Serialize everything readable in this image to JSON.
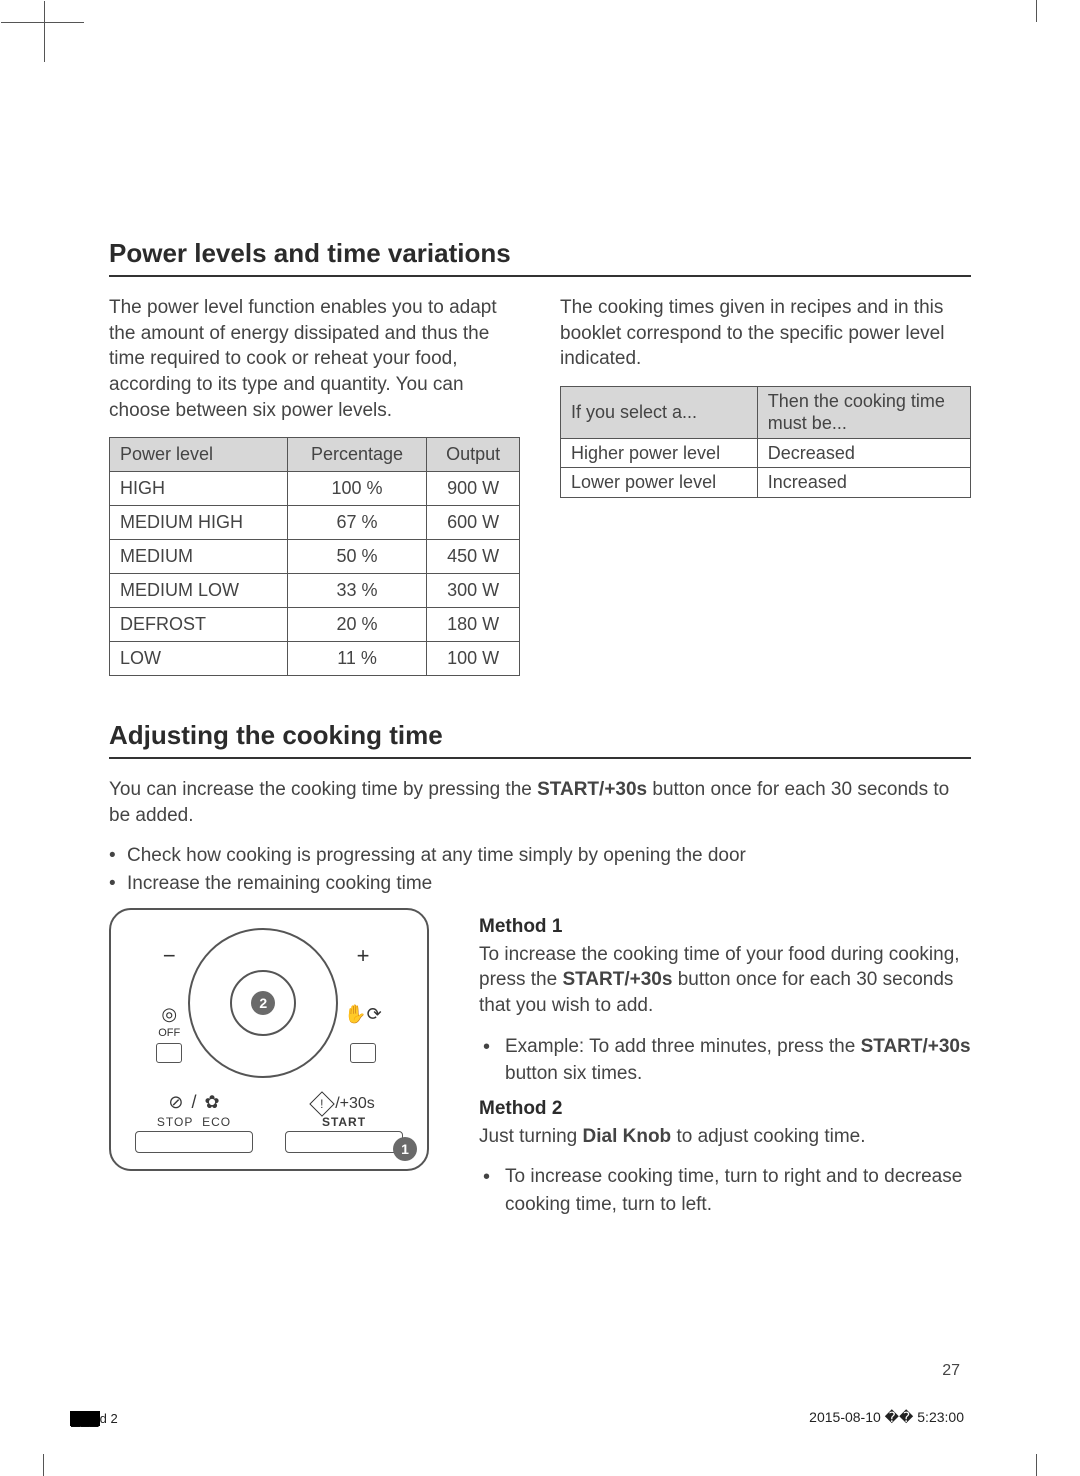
{
  "section1": {
    "title": "Power levels and time variations",
    "intro": "The power level function enables you to adapt the amount of energy dissipated and thus the time required to cook or reheat your food, according to its type and quantity. You can choose between six power levels.",
    "right_intro": "The cooking times given in recipes and in this booklet correspond to the specific power level indicated.",
    "power_table": {
      "columns": [
        "Power level",
        "Percentage",
        "Output"
      ],
      "rows": [
        [
          "HIGH",
          "100 %",
          "900 W"
        ],
        [
          "MEDIUM HIGH",
          "67 %",
          "600 W"
        ],
        [
          "MEDIUM",
          "50 %",
          "450 W"
        ],
        [
          "MEDIUM LOW",
          "33 %",
          "300 W"
        ],
        [
          "DEFROST",
          "20 %",
          "180 W"
        ],
        [
          "LOW",
          "11 %",
          "100 W"
        ]
      ]
    },
    "select_table": {
      "columns": [
        "If you select a...",
        "Then the cooking time must be..."
      ],
      "rows": [
        [
          "Higher power level",
          "Decreased"
        ],
        [
          "Lower power level",
          "Increased"
        ]
      ]
    }
  },
  "section2": {
    "title": "Adjusting the cooking time",
    "intro_pre": "You can increase the cooking time by pressing the ",
    "intro_bold": "START/+30s",
    "intro_post": " button once for each 30 seconds to be added.",
    "bullets": [
      "Check how cooking is progressing at any time simply by opening the door",
      "Increase the remaining cooking time"
    ],
    "panel": {
      "minus": "−",
      "plus": "+",
      "badge_dial": "2",
      "badge_start": "1",
      "off_label": "OFF",
      "stop_label": "STOP",
      "eco_label": "ECO",
      "start_label": "START",
      "plus30": "/+30s"
    },
    "method1": {
      "title": "Method 1",
      "p_pre": "To increase the cooking time of your food during cooking, press the ",
      "p_bold": "START/+30s",
      "p_post": " button once for each 30 seconds that you wish to add.",
      "ex_pre": "Example: To add three minutes, press the ",
      "ex_bold": "START/+30s",
      "ex_post": " button six times."
    },
    "method2": {
      "title": "Method 2",
      "p_pre": "Just turning ",
      "p_bold": "Dial Knob",
      "p_post": " to adjust cooking time.",
      "bullet": "To increase cooking time, turn to right and to decrease cooking time, turn to left."
    }
  },
  "footer": {
    "page": "27",
    "left_code": "d  2",
    "right": "2015-08-10   �� 5:23:00"
  },
  "colors": {
    "text": "#3a3a3a",
    "header_bg": "#d7d7d7",
    "border": "#555555",
    "badge_bg": "#6a6a6a"
  }
}
